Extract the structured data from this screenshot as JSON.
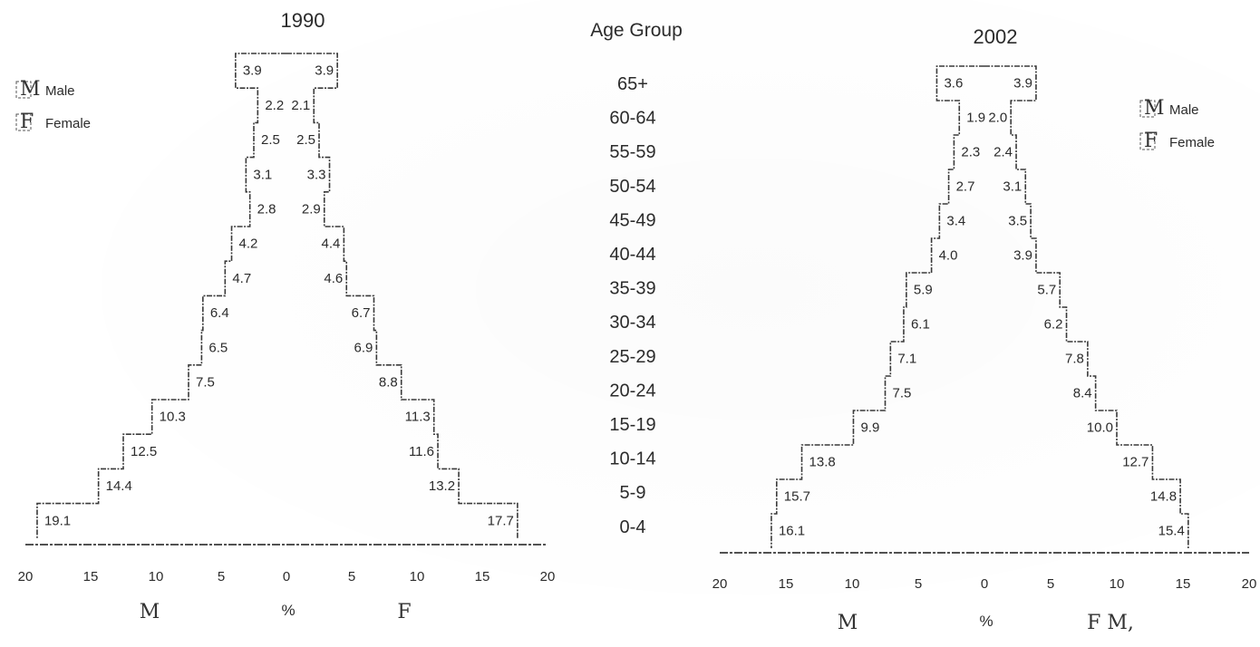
{
  "chart_data": {
    "type": "bar",
    "subtype": "population-pyramid",
    "age_group_header": "Age Group",
    "age_groups": [
      "65+",
      "60-64",
      "55-59",
      "50-54",
      "45-49",
      "40-44",
      "35-39",
      "30-34",
      "25-29",
      "20-24",
      "15-19",
      "10-14",
      "5-9",
      "0-4"
    ],
    "x_unit_label": "%",
    "x_ticks": [
      "20",
      "15",
      "10",
      "5",
      "0",
      "5",
      "10",
      "15",
      "20"
    ],
    "xlim": [
      -20,
      20
    ],
    "left_label": "M",
    "right_label": "F",
    "pyramids": [
      {
        "title": "1990",
        "legend": [
          {
            "symbol": "M",
            "label": "Male"
          },
          {
            "symbol": "F",
            "label": "Female"
          }
        ],
        "legend_position": "top-left",
        "series": [
          {
            "name": "Male",
            "values": [
              3.9,
              2.2,
              2.5,
              3.1,
              2.8,
              4.2,
              4.7,
              6.4,
              6.5,
              7.5,
              10.3,
              12.5,
              14.4,
              19.1
            ]
          },
          {
            "name": "Female",
            "values": [
              3.9,
              2.1,
              2.5,
              3.3,
              2.9,
              4.4,
              4.6,
              6.7,
              6.9,
              8.8,
              11.3,
              11.6,
              13.2,
              17.7
            ]
          }
        ],
        "male_value_labels": [
          "3.9",
          "2.2",
          "2.5",
          "3.1",
          "2.8",
          "4.2",
          "4.7",
          "6.4",
          "6.5",
          "7.5",
          "10.3",
          "12.5",
          "14.4",
          "19.1"
        ],
        "female_value_labels": [
          "3.9",
          "2.1",
          "2.5",
          "3.3",
          "2.9",
          "4.4",
          "4.6",
          "6.7",
          "6.9",
          "8.8",
          "11.3",
          "11.6",
          "13.2",
          "17.7"
        ],
        "footer_labels": [
          "M",
          "%",
          "F"
        ]
      },
      {
        "title": "2002",
        "legend": [
          {
            "symbol": "M",
            "label": "Male"
          },
          {
            "symbol": "F",
            "label": "Female"
          }
        ],
        "legend_position": "top-right",
        "series": [
          {
            "name": "Male",
            "values": [
              3.6,
              1.9,
              2.3,
              2.7,
              3.4,
              4.0,
              5.9,
              6.1,
              7.1,
              7.5,
              9.9,
              13.8,
              15.7,
              16.1
            ]
          },
          {
            "name": "Female",
            "values": [
              3.9,
              2.0,
              2.4,
              3.1,
              3.5,
              3.9,
              5.7,
              6.2,
              7.8,
              8.4,
              10.0,
              12.7,
              14.8,
              15.4
            ]
          }
        ],
        "male_value_labels": [
          "3.6",
          "1.9",
          "2.3",
          "2.7",
          "3.4",
          "4.0",
          "5.9",
          "6.1",
          "7.1",
          "7.5",
          "9.9",
          "13.8",
          "15.7",
          "16.1"
        ],
        "female_value_labels": [
          "3.9",
          "2.0",
          "2.4",
          "3.1",
          "3.5",
          "3.9",
          "5.7",
          "6.2",
          "7.8",
          "8.4",
          "10.0",
          "12.7",
          "14.8",
          "15.4"
        ],
        "footer_labels": [
          "M",
          "%",
          "F M,"
        ]
      }
    ]
  }
}
